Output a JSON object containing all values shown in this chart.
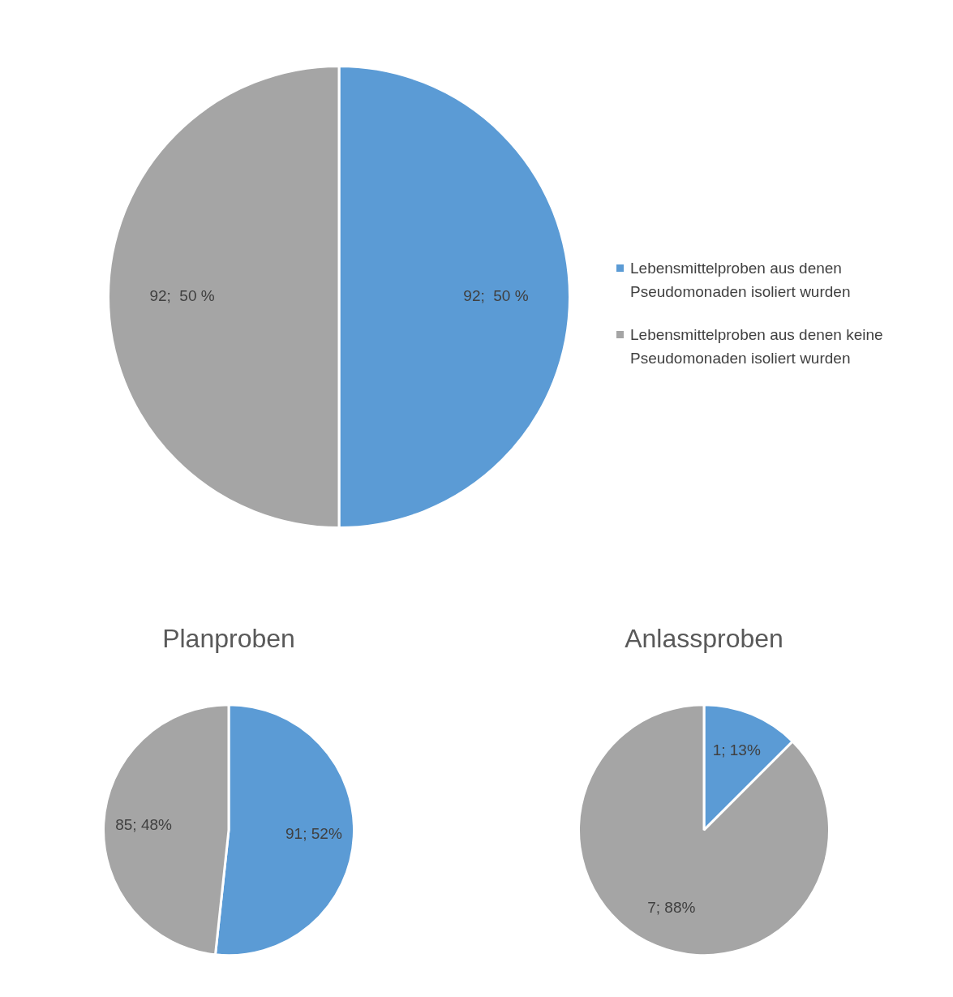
{
  "chart_data": [
    {
      "type": "pie",
      "categories": [
        "Lebensmittelproben aus denen Pseudomonaden isoliert wurden",
        "Lebensmittelproben aus denen keine Pseudomonaden isoliert wurden"
      ],
      "values": [
        92,
        92
      ],
      "colors": [
        "#5b9bd5",
        "#a5a5a5"
      ],
      "value_labels": [
        "92;  50 %",
        "92;  50 %"
      ],
      "legend": "right"
    },
    {
      "type": "pie",
      "title": "Planproben",
      "categories": [
        null,
        null
      ],
      "values": [
        91,
        85
      ],
      "colors": [
        "#5b9bd5",
        "#a5a5a5"
      ],
      "value_labels": [
        "91; 52%",
        "85; 48%"
      ]
    },
    {
      "type": "pie",
      "title": "Anlassproben",
      "categories": [
        null,
        null
      ],
      "values": [
        1,
        7
      ],
      "colors": [
        "#5b9bd5",
        "#a5a5a5"
      ],
      "value_labels": [
        "1; 13%",
        "7; 88%"
      ]
    }
  ]
}
